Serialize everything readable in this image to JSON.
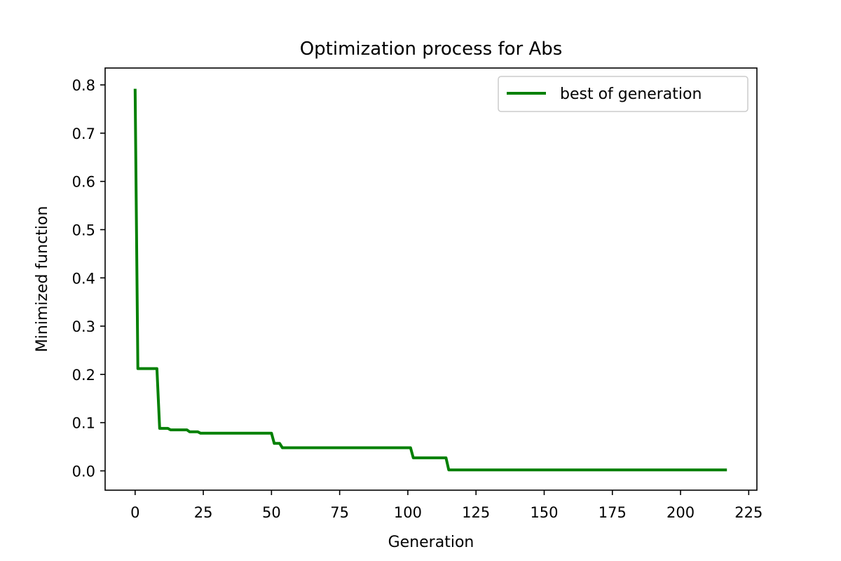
{
  "chart_data": {
    "type": "line",
    "title": "Optimization process for Abs",
    "xlabel": "Generation",
    "ylabel": "Minimized function",
    "xlim": [
      -11,
      228
    ],
    "ylim": [
      -0.04,
      0.835
    ],
    "xticks": [
      0,
      25,
      50,
      75,
      100,
      125,
      150,
      175,
      200,
      225
    ],
    "yticks": [
      0.0,
      0.1,
      0.2,
      0.3,
      0.4,
      0.5,
      0.6,
      0.7,
      0.8
    ],
    "ytick_labels": [
      "0.0",
      "0.1",
      "0.2",
      "0.3",
      "0.4",
      "0.5",
      "0.6",
      "0.7",
      "0.8"
    ],
    "grid": false,
    "legend_position": "top-right",
    "series": [
      {
        "name": "best of generation",
        "color": "#008000",
        "x": [
          0,
          1,
          8,
          9,
          12,
          13,
          19,
          20,
          23,
          24,
          50,
          51,
          53,
          54,
          101,
          102,
          114,
          115,
          217
        ],
        "y": [
          0.792,
          0.212,
          0.212,
          0.088,
          0.088,
          0.085,
          0.085,
          0.081,
          0.081,
          0.078,
          0.078,
          0.057,
          0.057,
          0.048,
          0.048,
          0.027,
          0.027,
          0.002,
          0.002
        ]
      }
    ]
  }
}
